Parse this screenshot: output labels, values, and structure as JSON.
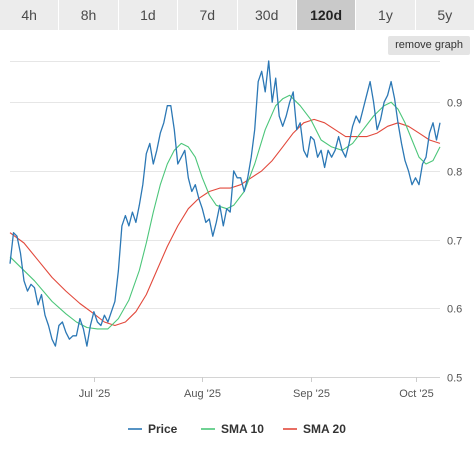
{
  "tabs": [
    {
      "label": "4h",
      "active": false
    },
    {
      "label": "8h",
      "active": false
    },
    {
      "label": "1d",
      "active": false
    },
    {
      "label": "7d",
      "active": false
    },
    {
      "label": "30d",
      "active": false
    },
    {
      "label": "120d",
      "active": true
    },
    {
      "label": "1y",
      "active": false
    },
    {
      "label": "5y",
      "active": false
    }
  ],
  "remove_graph_label": "remove graph",
  "chart_data": {
    "type": "line",
    "title": "",
    "xlabel": "",
    "ylabel": "",
    "x_start": "2025-06-07",
    "x_end": "2025-10-08",
    "ylim": [
      0.5,
      0.96
    ],
    "yticks": [
      0.5,
      0.6,
      0.7,
      0.8,
      0.9
    ],
    "xticks": [
      {
        "date": "2025-07-01",
        "label": "Jul '25"
      },
      {
        "date": "2025-08-01",
        "label": "Aug '25"
      },
      {
        "date": "2025-09-01",
        "label": "Sep '25"
      },
      {
        "date": "2025-10-01",
        "label": "Oct '25"
      }
    ],
    "grid": true,
    "legend_position": "bottom",
    "series": [
      {
        "name": "Price",
        "color": "#2c78b5",
        "points": [
          [
            "2025-06-07",
            0.665
          ],
          [
            "2025-06-08",
            0.71
          ],
          [
            "2025-06-09",
            0.705
          ],
          [
            "2025-06-10",
            0.68
          ],
          [
            "2025-06-11",
            0.64
          ],
          [
            "2025-06-12",
            0.625
          ],
          [
            "2025-06-13",
            0.635
          ],
          [
            "2025-06-14",
            0.63
          ],
          [
            "2025-06-15",
            0.605
          ],
          [
            "2025-06-16",
            0.62
          ],
          [
            "2025-06-17",
            0.59
          ],
          [
            "2025-06-18",
            0.575
          ],
          [
            "2025-06-19",
            0.555
          ],
          [
            "2025-06-20",
            0.545
          ],
          [
            "2025-06-21",
            0.575
          ],
          [
            "2025-06-22",
            0.58
          ],
          [
            "2025-06-23",
            0.565
          ],
          [
            "2025-06-24",
            0.555
          ],
          [
            "2025-06-25",
            0.56
          ],
          [
            "2025-06-26",
            0.56
          ],
          [
            "2025-06-27",
            0.585
          ],
          [
            "2025-06-28",
            0.57
          ],
          [
            "2025-06-29",
            0.545
          ],
          [
            "2025-06-30",
            0.575
          ],
          [
            "2025-07-01",
            0.595
          ],
          [
            "2025-07-02",
            0.58
          ],
          [
            "2025-07-03",
            0.575
          ],
          [
            "2025-07-04",
            0.59
          ],
          [
            "2025-07-05",
            0.58
          ],
          [
            "2025-07-06",
            0.595
          ],
          [
            "2025-07-07",
            0.61
          ],
          [
            "2025-07-08",
            0.655
          ],
          [
            "2025-07-09",
            0.72
          ],
          [
            "2025-07-10",
            0.735
          ],
          [
            "2025-07-11",
            0.72
          ],
          [
            "2025-07-12",
            0.74
          ],
          [
            "2025-07-13",
            0.725
          ],
          [
            "2025-07-14",
            0.75
          ],
          [
            "2025-07-15",
            0.78
          ],
          [
            "2025-07-16",
            0.825
          ],
          [
            "2025-07-17",
            0.84
          ],
          [
            "2025-07-18",
            0.81
          ],
          [
            "2025-07-19",
            0.83
          ],
          [
            "2025-07-20",
            0.855
          ],
          [
            "2025-07-21",
            0.87
          ],
          [
            "2025-07-22",
            0.895
          ],
          [
            "2025-07-23",
            0.895
          ],
          [
            "2025-07-24",
            0.86
          ],
          [
            "2025-07-25",
            0.81
          ],
          [
            "2025-07-26",
            0.82
          ],
          [
            "2025-07-27",
            0.83
          ],
          [
            "2025-07-28",
            0.79
          ],
          [
            "2025-07-29",
            0.77
          ],
          [
            "2025-07-30",
            0.78
          ],
          [
            "2025-07-31",
            0.76
          ],
          [
            "2025-08-01",
            0.745
          ],
          [
            "2025-08-02",
            0.725
          ],
          [
            "2025-08-03",
            0.73
          ],
          [
            "2025-08-04",
            0.705
          ],
          [
            "2025-08-05",
            0.725
          ],
          [
            "2025-08-06",
            0.75
          ],
          [
            "2025-08-07",
            0.72
          ],
          [
            "2025-08-08",
            0.745
          ],
          [
            "2025-08-09",
            0.74
          ],
          [
            "2025-08-10",
            0.8
          ],
          [
            "2025-08-11",
            0.79
          ],
          [
            "2025-08-12",
            0.79
          ],
          [
            "2025-08-13",
            0.77
          ],
          [
            "2025-08-14",
            0.79
          ],
          [
            "2025-08-15",
            0.82
          ],
          [
            "2025-08-16",
            0.86
          ],
          [
            "2025-08-17",
            0.93
          ],
          [
            "2025-08-18",
            0.945
          ],
          [
            "2025-08-19",
            0.915
          ],
          [
            "2025-08-20",
            0.96
          ],
          [
            "2025-08-21",
            0.9
          ],
          [
            "2025-08-22",
            0.935
          ],
          [
            "2025-08-23",
            0.88
          ],
          [
            "2025-08-24",
            0.865
          ],
          [
            "2025-08-25",
            0.88
          ],
          [
            "2025-08-26",
            0.9
          ],
          [
            "2025-08-27",
            0.915
          ],
          [
            "2025-08-28",
            0.86
          ],
          [
            "2025-08-29",
            0.87
          ],
          [
            "2025-08-30",
            0.83
          ],
          [
            "2025-08-31",
            0.82
          ],
          [
            "2025-09-01",
            0.85
          ],
          [
            "2025-09-02",
            0.845
          ],
          [
            "2025-09-03",
            0.82
          ],
          [
            "2025-09-04",
            0.83
          ],
          [
            "2025-09-05",
            0.805
          ],
          [
            "2025-09-06",
            0.83
          ],
          [
            "2025-09-07",
            0.82
          ],
          [
            "2025-09-08",
            0.83
          ],
          [
            "2025-09-09",
            0.85
          ],
          [
            "2025-09-10",
            0.83
          ],
          [
            "2025-09-11",
            0.82
          ],
          [
            "2025-09-12",
            0.84
          ],
          [
            "2025-09-13",
            0.865
          ],
          [
            "2025-09-14",
            0.88
          ],
          [
            "2025-09-15",
            0.87
          ],
          [
            "2025-09-16",
            0.89
          ],
          [
            "2025-09-17",
            0.91
          ],
          [
            "2025-09-18",
            0.93
          ],
          [
            "2025-09-19",
            0.9
          ],
          [
            "2025-09-20",
            0.86
          ],
          [
            "2025-09-21",
            0.875
          ],
          [
            "2025-09-22",
            0.9
          ],
          [
            "2025-09-23",
            0.91
          ],
          [
            "2025-09-24",
            0.93
          ],
          [
            "2025-09-25",
            0.905
          ],
          [
            "2025-09-26",
            0.87
          ],
          [
            "2025-09-27",
            0.84
          ],
          [
            "2025-09-28",
            0.815
          ],
          [
            "2025-09-29",
            0.8
          ],
          [
            "2025-09-30",
            0.78
          ],
          [
            "2025-10-01",
            0.79
          ],
          [
            "2025-10-02",
            0.78
          ],
          [
            "2025-10-03",
            0.81
          ],
          [
            "2025-10-04",
            0.82
          ],
          [
            "2025-10-05",
            0.855
          ],
          [
            "2025-10-06",
            0.87
          ],
          [
            "2025-10-07",
            0.845
          ],
          [
            "2025-10-08",
            0.87
          ]
        ]
      },
      {
        "name": "SMA 10",
        "color": "#4cc67a",
        "points": [
          [
            "2025-06-07",
            0.675
          ],
          [
            "2025-06-14",
            0.64
          ],
          [
            "2025-06-19",
            0.61
          ],
          [
            "2025-06-23",
            0.592
          ],
          [
            "2025-06-26",
            0.58
          ],
          [
            "2025-06-29",
            0.572
          ],
          [
            "2025-07-02",
            0.57
          ],
          [
            "2025-07-05",
            0.57
          ],
          [
            "2025-07-08",
            0.585
          ],
          [
            "2025-07-11",
            0.612
          ],
          [
            "2025-07-14",
            0.655
          ],
          [
            "2025-07-16",
            0.695
          ],
          [
            "2025-07-18",
            0.74
          ],
          [
            "2025-07-20",
            0.78
          ],
          [
            "2025-07-22",
            0.81
          ],
          [
            "2025-07-24",
            0.83
          ],
          [
            "2025-07-26",
            0.84
          ],
          [
            "2025-07-28",
            0.835
          ],
          [
            "2025-07-30",
            0.82
          ],
          [
            "2025-08-01",
            0.79
          ],
          [
            "2025-08-03",
            0.765
          ],
          [
            "2025-08-05",
            0.75
          ],
          [
            "2025-08-08",
            0.745
          ],
          [
            "2025-08-10",
            0.75
          ],
          [
            "2025-08-13",
            0.77
          ],
          [
            "2025-08-16",
            0.81
          ],
          [
            "2025-08-19",
            0.86
          ],
          [
            "2025-08-22",
            0.895
          ],
          [
            "2025-08-24",
            0.905
          ],
          [
            "2025-08-26",
            0.91
          ],
          [
            "2025-08-29",
            0.895
          ],
          [
            "2025-09-01",
            0.875
          ],
          [
            "2025-09-04",
            0.845
          ],
          [
            "2025-09-07",
            0.835
          ],
          [
            "2025-09-10",
            0.83
          ],
          [
            "2025-09-13",
            0.84
          ],
          [
            "2025-09-16",
            0.86
          ],
          [
            "2025-09-19",
            0.88
          ],
          [
            "2025-09-22",
            0.895
          ],
          [
            "2025-09-24",
            0.9
          ],
          [
            "2025-09-26",
            0.89
          ],
          [
            "2025-09-28",
            0.87
          ],
          [
            "2025-09-30",
            0.845
          ],
          [
            "2025-10-02",
            0.82
          ],
          [
            "2025-10-04",
            0.81
          ],
          [
            "2025-10-06",
            0.815
          ],
          [
            "2025-10-08",
            0.835
          ]
        ]
      },
      {
        "name": "SMA 20",
        "color": "#e2493c",
        "points": [
          [
            "2025-06-07",
            0.71
          ],
          [
            "2025-06-11",
            0.695
          ],
          [
            "2025-06-15",
            0.67
          ],
          [
            "2025-06-19",
            0.645
          ],
          [
            "2025-06-23",
            0.625
          ],
          [
            "2025-06-27",
            0.607
          ],
          [
            "2025-07-01",
            0.592
          ],
          [
            "2025-07-04",
            0.58
          ],
          [
            "2025-07-07",
            0.575
          ],
          [
            "2025-07-10",
            0.58
          ],
          [
            "2025-07-13",
            0.595
          ],
          [
            "2025-07-16",
            0.62
          ],
          [
            "2025-07-19",
            0.655
          ],
          [
            "2025-07-22",
            0.69
          ],
          [
            "2025-07-25",
            0.72
          ],
          [
            "2025-07-28",
            0.745
          ],
          [
            "2025-07-31",
            0.76
          ],
          [
            "2025-08-03",
            0.77
          ],
          [
            "2025-08-06",
            0.775
          ],
          [
            "2025-08-09",
            0.775
          ],
          [
            "2025-08-12",
            0.78
          ],
          [
            "2025-08-15",
            0.79
          ],
          [
            "2025-08-18",
            0.8
          ],
          [
            "2025-08-21",
            0.815
          ],
          [
            "2025-08-24",
            0.835
          ],
          [
            "2025-08-27",
            0.855
          ],
          [
            "2025-08-30",
            0.87
          ],
          [
            "2025-09-02",
            0.875
          ],
          [
            "2025-09-05",
            0.87
          ],
          [
            "2025-09-08",
            0.86
          ],
          [
            "2025-09-11",
            0.85
          ],
          [
            "2025-09-14",
            0.85
          ],
          [
            "2025-09-17",
            0.85
          ],
          [
            "2025-09-20",
            0.855
          ],
          [
            "2025-09-23",
            0.865
          ],
          [
            "2025-09-26",
            0.87
          ],
          [
            "2025-09-29",
            0.865
          ],
          [
            "2025-10-02",
            0.855
          ],
          [
            "2025-10-05",
            0.845
          ],
          [
            "2025-10-08",
            0.84
          ]
        ]
      }
    ]
  }
}
